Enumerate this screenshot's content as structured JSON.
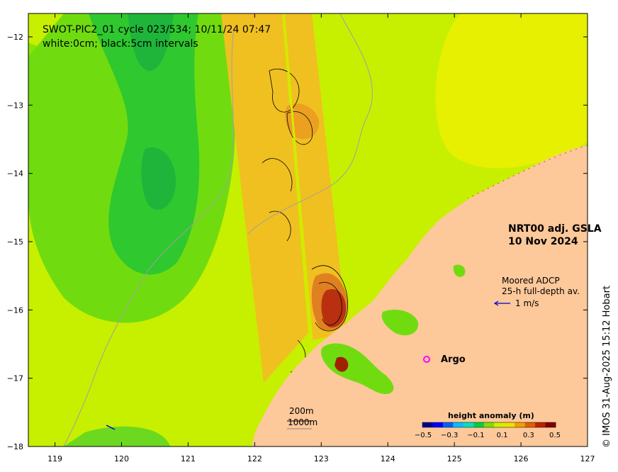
{
  "title": {
    "line1": "SWOT-PIC2_01 cycle 023/534; 10/11/24 07:47",
    "line2": "white:0cm; black:5cm intervals"
  },
  "product": {
    "line1": "NRT00 adj. GSLA",
    "line2": "10 Nov 2024"
  },
  "adcp_legend": {
    "line1": "Moored ADCP",
    "line2": "25-h full-depth av.",
    "speed_label": "1 m/s"
  },
  "argo_legend": {
    "label": "Argo",
    "marker_color": "#ff00ff"
  },
  "depth_contours": {
    "shallow": "200m",
    "deep": "1000m"
  },
  "colorbar": {
    "title": "height anomaly (m)",
    "ticks": [
      "−0.5",
      "−0.3",
      "−0.1",
      "0.1",
      "0.3",
      "0.5"
    ],
    "colors": [
      "#000090",
      "#0000ff",
      "#0060ff",
      "#00c0ff",
      "#00e0c0",
      "#00d040",
      "#80e000",
      "#d0f000",
      "#f0e000",
      "#f0a000",
      "#e06000",
      "#c02000",
      "#800000"
    ]
  },
  "x_axis": {
    "ticks": [
      "119",
      "120",
      "121",
      "122",
      "123",
      "124",
      "125",
      "126",
      "127"
    ]
  },
  "y_axis": {
    "ticks": [
      "−12",
      "−13",
      "−14",
      "−15",
      "−16",
      "−17",
      "−18"
    ]
  },
  "credit": "© IMOS 31-Aug-2025 15:12 Hobart",
  "colors": {
    "land": "#fdc89a",
    "background_sla": "#c8f000",
    "negative_sla": "#2fc82f",
    "swath_positive": "#f0c000",
    "peak_positive": "#a02000",
    "coastline": "#a0a0a0"
  }
}
